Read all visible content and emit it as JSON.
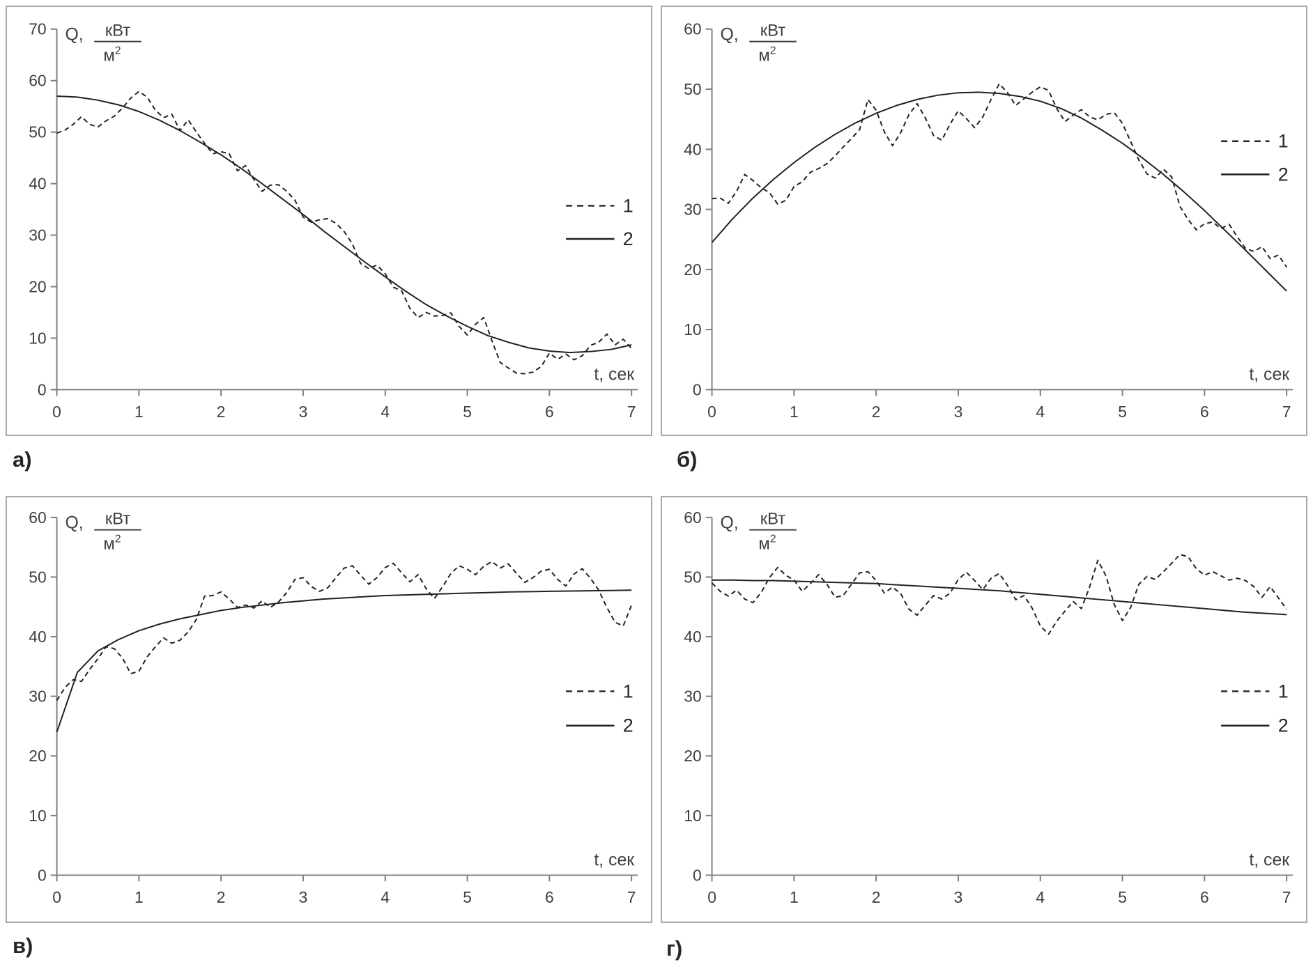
{
  "colors": {
    "axis": "#7f7f7f",
    "tick_text": "#3f3f3f",
    "series_line": "#212121",
    "panel_border": "#a8a8a8",
    "background": "#ffffff"
  },
  "chart_data": [
    {
      "id": "a",
      "type": "line",
      "caption": "а)",
      "xlabel": "t, сек",
      "ylabel": "Q, кВт/м²",
      "ylabel_parts": {
        "prefix": "Q,",
        "numerator": "кВт",
        "denominator": "м",
        "denominator_sup": "2"
      },
      "xlim": [
        0,
        7
      ],
      "ylim": [
        0,
        70
      ],
      "xticks": [
        0,
        1,
        2,
        3,
        4,
        5,
        6,
        7
      ],
      "yticks": [
        0,
        10,
        20,
        30,
        40,
        50,
        60,
        70
      ],
      "grid": false,
      "legend": {
        "position": "middle-right",
        "fy": [
          0.49,
          0.582
        ],
        "entries": [
          {
            "name": "1",
            "style": "dashed"
          },
          {
            "name": "2",
            "style": "solid"
          }
        ]
      },
      "series": [
        {
          "name": "1",
          "style": "dashed",
          "x_start": 0,
          "x_step": 0.1,
          "values": [
            49.8,
            50.4,
            51.5,
            53,
            51.5,
            51,
            52.2,
            53.1,
            54.7,
            56.6,
            57.9,
            56.8,
            54.3,
            52.8,
            53.5,
            50.3,
            52.4,
            50,
            47.8,
            45.8,
            46.2,
            45.8,
            42.5,
            43.5,
            40.8,
            38.5,
            39.7,
            39.8,
            38.5,
            36.8,
            33.5,
            32.5,
            33,
            33.2,
            32.3,
            30.7,
            28.3,
            24.5,
            23.5,
            24.2,
            22.5,
            19.9,
            19.2,
            15.8,
            14,
            15,
            14.3,
            14.4,
            14.9,
            12.3,
            10.6,
            12.7,
            14,
            9.5,
            5.3,
            4.2,
            3.2,
            3.1,
            3.4,
            4.5,
            7.1,
            5.9,
            6.9,
            5.8,
            6.6,
            8.6,
            9.2,
            10.8,
            8.7,
            9.8,
            8
          ]
        },
        {
          "name": "2",
          "style": "solid",
          "x_start": 0,
          "x_step": 0.25,
          "values": [
            57,
            56.8,
            56.2,
            55.3,
            54,
            52.3,
            50.3,
            48,
            45.6,
            42.9,
            40,
            37,
            34,
            30.8,
            27.8,
            24.8,
            21.9,
            19.1,
            16.5,
            14.3,
            12.3,
            10.5,
            9.2,
            8.1,
            7.5,
            7.2,
            7.4,
            7.8,
            8.7
          ]
        }
      ]
    },
    {
      "id": "b",
      "type": "line",
      "caption": "б)",
      "xlabel": "t, сек",
      "ylabel": "Q, кВт/м²",
      "ylabel_parts": {
        "prefix": "Q,",
        "numerator": "кВт",
        "denominator": "м",
        "denominator_sup": "2"
      },
      "xlim": [
        0,
        7
      ],
      "ylim": [
        0,
        60
      ],
      "xticks": [
        0,
        1,
        2,
        3,
        4,
        5,
        6,
        7
      ],
      "yticks": [
        0,
        10,
        20,
        30,
        40,
        50,
        60
      ],
      "grid": false,
      "legend": {
        "position": "upper-right",
        "fy": [
          0.311,
          0.403
        ],
        "entries": [
          {
            "name": "1",
            "style": "dashed"
          },
          {
            "name": "2",
            "style": "solid"
          }
        ]
      },
      "series": [
        {
          "name": "1",
          "style": "dashed",
          "x_start": 0,
          "x_step": 0.1,
          "values": [
            31.8,
            31.9,
            31,
            33,
            35.8,
            34.8,
            33.6,
            32.8,
            30.9,
            31.5,
            33.8,
            34.6,
            36.2,
            36.8,
            37.6,
            38.9,
            40.4,
            41.8,
            43.3,
            48.3,
            46.5,
            42.9,
            40.6,
            42.8,
            45.8,
            47.6,
            45.2,
            42.3,
            41.5,
            44.2,
            46.4,
            45.1,
            43.6,
            45.4,
            48.3,
            50.9,
            49.4,
            47.3,
            48.4,
            49.5,
            50.4,
            49.8,
            46.8,
            44.6,
            45.7,
            46.6,
            45.4,
            44.9,
            45.8,
            46.1,
            44.3,
            41.3,
            38.2,
            35.9,
            35.2,
            36.7,
            35.4,
            30.5,
            28.3,
            26.6,
            27.6,
            27.9,
            26.8,
            27.5,
            25.4,
            23.5,
            23,
            23.8,
            21.8,
            22.4,
            20.4
          ]
        },
        {
          "name": "2",
          "style": "solid",
          "x_start": 0,
          "x_step": 0.25,
          "values": [
            24.5,
            28.4,
            31.9,
            35,
            37.8,
            40.3,
            42.5,
            44.4,
            46,
            47.3,
            48.3,
            49,
            49.4,
            49.5,
            49.3,
            48.8,
            48,
            46.8,
            45.2,
            43.2,
            41,
            38.5,
            35.8,
            32.9,
            29.8,
            26.5,
            23.2,
            19.8,
            16.4
          ]
        }
      ]
    },
    {
      "id": "v",
      "type": "line",
      "caption": "в)",
      "xlabel": "t, сек",
      "ylabel": "Q, кВт/м²",
      "ylabel_parts": {
        "prefix": "Q,",
        "numerator": "кВт",
        "denominator": "м",
        "denominator_sup": "2"
      },
      "xlim": [
        0,
        7
      ],
      "ylim": [
        0,
        60
      ],
      "xticks": [
        0,
        1,
        2,
        3,
        4,
        5,
        6,
        7
      ],
      "yticks": [
        0,
        10,
        20,
        30,
        40,
        50,
        60
      ],
      "grid": false,
      "legend": {
        "position": "middle-right",
        "fy": [
          0.486,
          0.582
        ],
        "entries": [
          {
            "name": "1",
            "style": "dashed"
          },
          {
            "name": "2",
            "style": "solid"
          }
        ]
      },
      "series": [
        {
          "name": "1",
          "style": "dashed",
          "x_start": 0,
          "x_step": 0.1,
          "values": [
            29.3,
            31.5,
            32.8,
            32.5,
            34.5,
            36.3,
            38.3,
            38,
            36.4,
            33.8,
            34.2,
            36.6,
            38.3,
            39.8,
            38.9,
            39.4,
            40.8,
            42.9,
            46.8,
            46.9,
            47.5,
            46.3,
            44.9,
            45.3,
            44.8,
            46,
            44.9,
            45.8,
            47.4,
            49.6,
            49.9,
            48.4,
            47.6,
            48.2,
            49.9,
            51.5,
            51.9,
            50.3,
            48.8,
            49.9,
            51.6,
            52.3,
            50.7,
            49.2,
            50.4,
            48,
            46.4,
            48.4,
            50.6,
            51.9,
            51.3,
            50.4,
            51.8,
            52.6,
            51.5,
            52.2,
            50.6,
            49.1,
            49.9,
            51,
            51.3,
            49.6,
            48.5,
            50.5,
            51.4,
            49.8,
            47.8,
            44.9,
            42.4,
            41.8,
            45.3
          ]
        },
        {
          "name": "2",
          "style": "solid",
          "x_start": 0,
          "x_step": 0.25,
          "values": [
            24,
            34,
            37.6,
            39.5,
            41,
            42.1,
            43,
            43.7,
            44.4,
            44.9,
            45.3,
            45.7,
            46,
            46.3,
            46.5,
            46.7,
            46.9,
            47,
            47.1,
            47.2,
            47.3,
            47.4,
            47.5,
            47.55,
            47.6,
            47.65,
            47.7,
            47.75,
            47.8
          ]
        }
      ]
    },
    {
      "id": "g",
      "type": "line",
      "caption": "г)",
      "xlabel": "t, сек",
      "ylabel": "Q, кВт/м²",
      "ylabel_parts": {
        "prefix": "Q,",
        "numerator": "кВт",
        "denominator": "м",
        "denominator_sup": "2"
      },
      "xlim": [
        0,
        7
      ],
      "ylim": [
        0,
        60
      ],
      "xticks": [
        0,
        1,
        2,
        3,
        4,
        5,
        6,
        7
      ],
      "yticks": [
        0,
        10,
        20,
        30,
        40,
        50,
        60
      ],
      "grid": false,
      "legend": {
        "position": "middle-right",
        "fy": [
          0.486,
          0.582
        ],
        "entries": [
          {
            "name": "1",
            "style": "dashed"
          },
          {
            "name": "2",
            "style": "solid"
          }
        ]
      },
      "series": [
        {
          "name": "1",
          "style": "dashed",
          "x_start": 0,
          "x_step": 0.1,
          "values": [
            49,
            47.6,
            46.8,
            47.8,
            46.3,
            45.7,
            47.4,
            49.9,
            51.6,
            50.3,
            49.5,
            47.6,
            48.9,
            50.4,
            48.8,
            46.6,
            46.9,
            48.8,
            50.7,
            50.9,
            49.4,
            47.3,
            48.3,
            47.2,
            44.6,
            43.6,
            45.3,
            46.9,
            46.3,
            47.3,
            49.6,
            50.8,
            49.4,
            47.9,
            49.8,
            50.6,
            48.6,
            46.2,
            46.9,
            44.8,
            41.8,
            40.4,
            42.6,
            44.3,
            45.9,
            44.7,
            48.3,
            52.8,
            50.2,
            45.4,
            42.7,
            44.9,
            48.8,
            50.1,
            49.6,
            50.9,
            52.3,
            53.8,
            53.4,
            51.4,
            50.3,
            50.9,
            50.2,
            49.5,
            49.8,
            49.4,
            48.4,
            46.6,
            48.4,
            46.5,
            44.6
          ]
        },
        {
          "name": "2",
          "style": "solid",
          "x_start": 0,
          "x_step": 0.25,
          "values": [
            49.5,
            49.5,
            49.4,
            49.4,
            49.3,
            49.2,
            49.1,
            49,
            48.9,
            48.7,
            48.5,
            48.3,
            48.1,
            47.9,
            47.7,
            47.4,
            47.1,
            46.8,
            46.5,
            46.2,
            45.9,
            45.6,
            45.3,
            45,
            44.7,
            44.4,
            44.1,
            43.9,
            43.7
          ]
        }
      ]
    }
  ]
}
